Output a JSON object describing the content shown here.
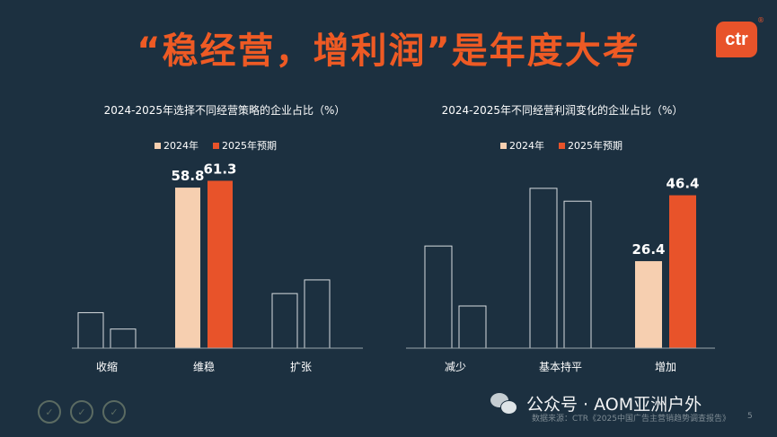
{
  "title": "“稳经营，增利润”是年度大考",
  "logo_text": "ctr",
  "logo_mark": "®",
  "colors": {
    "background": "#1c3040",
    "accent": "#ee5a24",
    "series_2024": "#f6cfb0",
    "series_2025": "#e8532a",
    "outline": "#d8dde0"
  },
  "chart_data": [
    {
      "type": "bar",
      "title": "2024-2025年选择不同经营策略的企业占比（%）",
      "categories": [
        "收缩",
        "维稳",
        "扩张"
      ],
      "series": [
        {
          "name": "2024年",
          "values": [
            13,
            58.8,
            20
          ],
          "labels": [
            "",
            "58.8",
            ""
          ],
          "highlight": [
            false,
            true,
            false
          ]
        },
        {
          "name": "2025年预期",
          "values": [
            7,
            61.3,
            25
          ],
          "labels": [
            "",
            "61.3",
            ""
          ],
          "highlight": [
            false,
            true,
            false
          ]
        }
      ],
      "ylim": [
        0,
        70
      ],
      "legend": "top-center"
    },
    {
      "type": "bar",
      "title": "2024-2025年不同经营利润变化的企业占比（%）",
      "categories": [
        "减少",
        "基本持平",
        "增加"
      ],
      "series": [
        {
          "name": "2024年",
          "values": [
            31,
            48.5,
            26.4
          ],
          "labels": [
            "",
            "",
            "26.4"
          ],
          "highlight": [
            false,
            false,
            true
          ]
        },
        {
          "name": "2025年预期",
          "values": [
            12.8,
            44.6,
            46.4
          ],
          "labels": [
            "",
            "",
            "46.4"
          ],
          "highlight": [
            false,
            false,
            true
          ]
        }
      ],
      "ylim": [
        0,
        58
      ],
      "legend": "top-center"
    }
  ],
  "footer": {
    "source": "数据来源：CTR《2025中国广告主营销趋势调查报告》",
    "page": "5",
    "watermark": "公众号 · AOM亚洲户外"
  }
}
